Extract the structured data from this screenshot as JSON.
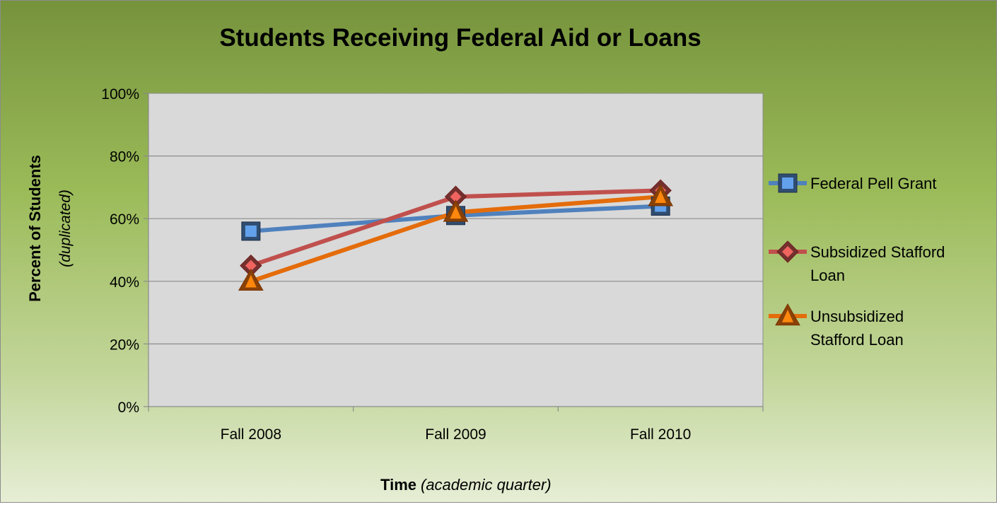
{
  "chart_data": {
    "type": "line",
    "title": "Students Receiving Federal Aid or Loans",
    "ylabel": "Percent of Students",
    "ylabel_sub": "(duplicated)",
    "xlabel": "Time",
    "xlabel_sub": "(academic quarter)",
    "categories": [
      "Fall 2008",
      "Fall 2009",
      "Fall 2010"
    ],
    "ylim": [
      0,
      100
    ],
    "yticks": [
      0,
      20,
      40,
      60,
      80,
      100
    ],
    "ytick_labels": [
      "0%",
      "20%",
      "40%",
      "60%",
      "80%",
      "100%"
    ],
    "grid": true,
    "legend_position": "right",
    "series": [
      {
        "name": "Federal Pell Grant",
        "name_lines": [
          "Federal Pell Grant"
        ],
        "values": [
          56,
          61,
          64
        ],
        "color": "#4f81bd",
        "marker": "square"
      },
      {
        "name": "Subsidized Stafford Loan",
        "name_lines": [
          "Subsidized Stafford",
          "Loan"
        ],
        "values": [
          45,
          67,
          69
        ],
        "color": "#c0504d",
        "marker": "diamond"
      },
      {
        "name": "Unsubsidized Stafford Loan",
        "name_lines": [
          "Unsubsidized",
          "Stafford Loan"
        ],
        "values": [
          40,
          62,
          67
        ],
        "color": "#e46c0a",
        "marker": "triangle"
      }
    ]
  }
}
